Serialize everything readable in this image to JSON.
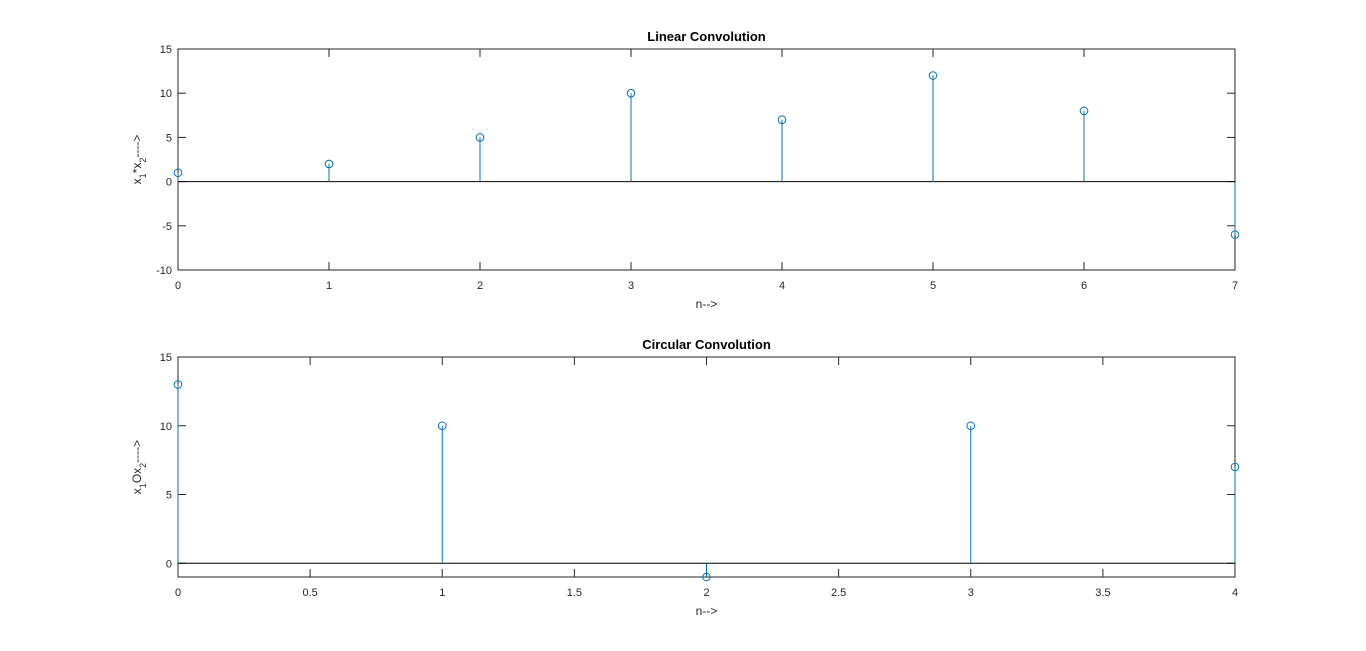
{
  "figure": {
    "background": "#ffffff",
    "axes_color": "#262626",
    "baseline_color": "#000000",
    "stem_color": "#0072bd"
  },
  "chart_data": [
    {
      "type": "stem",
      "title": "Linear Convolution",
      "xlabel": "n-->",
      "ylabel": {
        "parts": [
          "x",
          "1",
          "*x",
          "2",
          "---->"
        ]
      },
      "xlim": [
        0,
        7
      ],
      "ylim": [
        -10,
        15
      ],
      "xticks": [
        0,
        1,
        2,
        3,
        4,
        5,
        6,
        7
      ],
      "xtick_labels": [
        "0",
        "1",
        "2",
        "3",
        "4",
        "5",
        "6",
        "7"
      ],
      "yticks": [
        -10,
        -5,
        0,
        5,
        10,
        15
      ],
      "ytick_labels": [
        "-10",
        "-5",
        "0",
        "5",
        "10",
        "15"
      ],
      "baseline": 0,
      "grid": false,
      "x": [
        0,
        1,
        2,
        3,
        4,
        5,
        6,
        7
      ],
      "y": [
        1,
        2,
        5,
        10,
        7,
        12,
        8,
        -6
      ]
    },
    {
      "type": "stem",
      "title": "Circular Convolution",
      "xlabel": "n-->",
      "ylabel": {
        "parts": [
          "x",
          "1",
          "Ox",
          "2",
          "---->"
        ]
      },
      "xlim": [
        0,
        4
      ],
      "ylim": [
        -1,
        15
      ],
      "xticks": [
        0,
        0.5,
        1,
        1.5,
        2,
        2.5,
        3,
        3.5,
        4
      ],
      "xtick_labels": [
        "0",
        "0.5",
        "1",
        "1.5",
        "2",
        "2.5",
        "3",
        "3.5",
        "4"
      ],
      "yticks": [
        0,
        5,
        10,
        15
      ],
      "ytick_labels": [
        "0",
        "5",
        "10",
        "15"
      ],
      "baseline": 0,
      "grid": false,
      "x": [
        0,
        1,
        2,
        3,
        4
      ],
      "y": [
        13,
        10,
        -1,
        10,
        7
      ]
    }
  ]
}
